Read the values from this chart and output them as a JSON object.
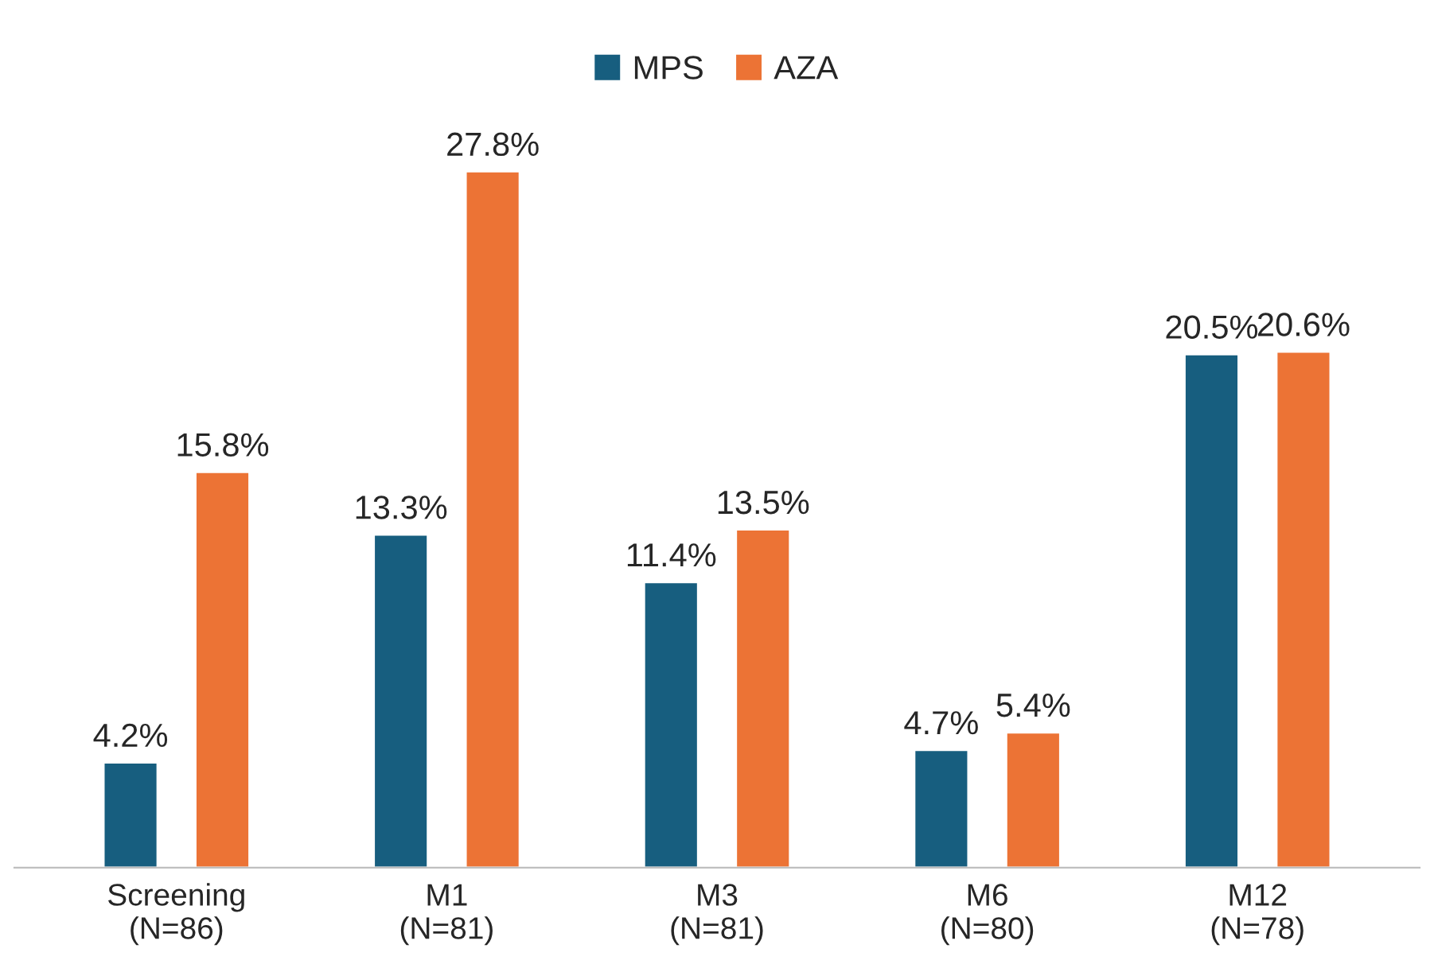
{
  "chart_data": {
    "type": "bar",
    "categories": [
      "Screening\n(N=86)",
      "M1\n(N=81)",
      "M3\n(N=81)",
      "M6\n(N=80)",
      "M12\n(N=78)"
    ],
    "series": [
      {
        "name": "MPS",
        "color": "#175e7f",
        "values": [
          4.2,
          13.3,
          11.4,
          4.7,
          20.5
        ],
        "value_labels": [
          "4.2%",
          "13.3%",
          "11.4%",
          "4.7%",
          "20.5%"
        ]
      },
      {
        "name": "AZA",
        "color": "#ec7335",
        "values": [
          15.8,
          27.8,
          13.5,
          5.4,
          20.6
        ],
        "value_labels": [
          "15.8%",
          "27.8%",
          "13.5%",
          "5.4%",
          "20.6%"
        ]
      }
    ],
    "legend": "top",
    "grid": false
  }
}
